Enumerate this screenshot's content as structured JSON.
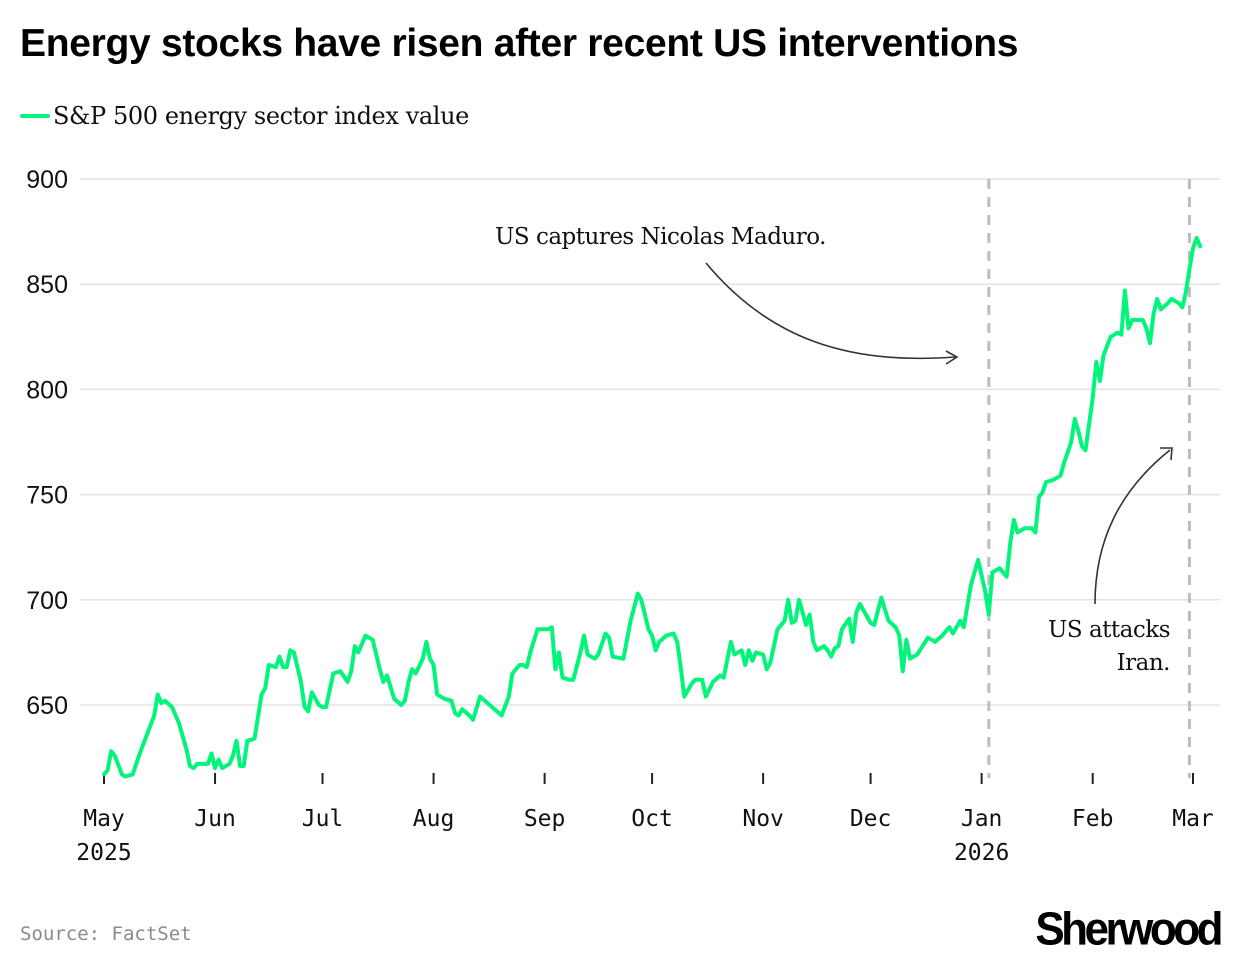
{
  "header": {
    "title": "Energy stocks have risen after recent US interventions"
  },
  "footer": {
    "source": "Source: FactSet",
    "brand": "Sherwood"
  },
  "colors": {
    "line": "#00f57a",
    "grid": "#e3e3e3",
    "event_line": "#bdbdbd",
    "annotation": "#333333"
  },
  "chart_data": {
    "type": "line",
    "title": "Energy stocks have risen after recent US interventions",
    "xlabel": "",
    "ylabel": "",
    "ylim": [
      614,
      900
    ],
    "xlim": [
      "2025-04-30",
      "2026-03-04"
    ],
    "grid": true,
    "legend_position": "top-left",
    "yticks": [
      650,
      700,
      750,
      800,
      850,
      900
    ],
    "xticks": [
      {
        "date": "2025-05-01",
        "label": "May",
        "sublabel": "2025"
      },
      {
        "date": "2025-06-01",
        "label": "Jun",
        "sublabel": ""
      },
      {
        "date": "2025-07-01",
        "label": "Jul",
        "sublabel": ""
      },
      {
        "date": "2025-08-01",
        "label": "Aug",
        "sublabel": ""
      },
      {
        "date": "2025-09-01",
        "label": "Sep",
        "sublabel": ""
      },
      {
        "date": "2025-10-01",
        "label": "Oct",
        "sublabel": ""
      },
      {
        "date": "2025-11-01",
        "label": "Nov",
        "sublabel": ""
      },
      {
        "date": "2025-12-01",
        "label": "Dec",
        "sublabel": ""
      },
      {
        "date": "2026-01-01",
        "label": "Jan",
        "sublabel": "2026"
      },
      {
        "date": "2026-02-01",
        "label": "Feb",
        "sublabel": ""
      },
      {
        "date": "2026-03-01",
        "label": "Mar",
        "sublabel": ""
      }
    ],
    "series": [
      {
        "name": "S&P 500 energy sector index value",
        "points": [
          [
            "2025-05-01",
            617
          ],
          [
            "2025-05-02",
            619
          ],
          [
            "2025-05-03",
            628
          ],
          [
            "2025-05-04",
            626
          ],
          [
            "2025-05-06",
            617
          ],
          [
            "2025-05-07",
            616
          ],
          [
            "2025-05-09",
            617
          ],
          [
            "2025-05-11",
            627
          ],
          [
            "2025-05-13",
            636
          ],
          [
            "2025-05-15",
            645
          ],
          [
            "2025-05-16",
            655
          ],
          [
            "2025-05-17",
            651
          ],
          [
            "2025-05-18",
            652
          ],
          [
            "2025-05-20",
            649
          ],
          [
            "2025-05-22",
            641
          ],
          [
            "2025-05-24",
            629
          ],
          [
            "2025-05-25",
            621
          ],
          [
            "2025-05-26",
            620
          ],
          [
            "2025-05-27",
            622
          ],
          [
            "2025-05-30",
            622
          ],
          [
            "2025-05-31",
            627
          ],
          [
            "2025-06-01",
            620
          ],
          [
            "2025-06-02",
            624
          ],
          [
            "2025-06-03",
            620
          ],
          [
            "2025-06-05",
            622
          ],
          [
            "2025-06-06",
            626
          ],
          [
            "2025-06-07",
            633
          ],
          [
            "2025-06-08",
            621
          ],
          [
            "2025-06-09",
            621
          ],
          [
            "2025-06-10",
            633
          ],
          [
            "2025-06-12",
            634
          ],
          [
            "2025-06-14",
            655
          ],
          [
            "2025-06-15",
            658
          ],
          [
            "2025-06-16",
            669
          ],
          [
            "2025-06-18",
            668
          ],
          [
            "2025-06-19",
            673
          ],
          [
            "2025-06-20",
            668
          ],
          [
            "2025-06-21",
            668
          ],
          [
            "2025-06-22",
            676
          ],
          [
            "2025-06-23",
            675
          ],
          [
            "2025-06-25",
            661
          ],
          [
            "2025-06-26",
            649
          ],
          [
            "2025-06-27",
            647
          ],
          [
            "2025-06-28",
            656
          ],
          [
            "2025-06-29",
            653
          ],
          [
            "2025-06-30",
            650
          ],
          [
            "2025-07-01",
            649
          ],
          [
            "2025-07-02",
            649
          ],
          [
            "2025-07-04",
            665
          ],
          [
            "2025-07-06",
            666
          ],
          [
            "2025-07-08",
            661
          ],
          [
            "2025-07-09",
            666
          ],
          [
            "2025-07-10",
            678
          ],
          [
            "2025-07-11",
            675
          ],
          [
            "2025-07-13",
            683
          ],
          [
            "2025-07-15",
            681
          ],
          [
            "2025-07-17",
            667
          ],
          [
            "2025-07-18",
            661
          ],
          [
            "2025-07-19",
            664
          ],
          [
            "2025-07-21",
            653
          ],
          [
            "2025-07-23",
            650
          ],
          [
            "2025-07-24",
            652
          ],
          [
            "2025-07-25",
            661
          ],
          [
            "2025-07-26",
            667
          ],
          [
            "2025-07-27",
            665
          ],
          [
            "2025-07-29",
            672
          ],
          [
            "2025-07-30",
            680
          ],
          [
            "2025-07-31",
            672
          ],
          [
            "2025-08-01",
            669
          ],
          [
            "2025-08-02",
            655
          ],
          [
            "2025-08-04",
            653
          ],
          [
            "2025-08-06",
            652
          ],
          [
            "2025-08-07",
            646
          ],
          [
            "2025-08-08",
            645
          ],
          [
            "2025-08-09",
            648
          ],
          [
            "2025-08-11",
            645
          ],
          [
            "2025-08-12",
            643
          ],
          [
            "2025-08-14",
            654
          ],
          [
            "2025-08-18",
            648
          ],
          [
            "2025-08-20",
            645
          ],
          [
            "2025-08-22",
            654
          ],
          [
            "2025-08-23",
            665
          ],
          [
            "2025-08-25",
            669
          ],
          [
            "2025-08-26",
            669
          ],
          [
            "2025-08-27",
            668
          ],
          [
            "2025-08-28",
            675
          ],
          [
            "2025-08-30",
            686
          ],
          [
            "2025-09-01",
            686
          ],
          [
            "2025-09-02",
            686
          ],
          [
            "2025-09-03",
            687
          ],
          [
            "2025-09-04",
            667
          ],
          [
            "2025-09-05",
            675
          ],
          [
            "2025-09-06",
            663
          ],
          [
            "2025-09-08",
            662
          ],
          [
            "2025-09-09",
            662
          ],
          [
            "2025-09-11",
            675
          ],
          [
            "2025-09-12",
            683
          ],
          [
            "2025-09-13",
            674
          ],
          [
            "2025-09-15",
            672
          ],
          [
            "2025-09-16",
            674
          ],
          [
            "2025-09-18",
            684
          ],
          [
            "2025-09-19",
            682
          ],
          [
            "2025-09-20",
            673
          ],
          [
            "2025-09-23",
            672
          ],
          [
            "2025-09-25",
            690
          ],
          [
            "2025-09-27",
            703
          ],
          [
            "2025-09-28",
            700
          ],
          [
            "2025-09-30",
            686
          ],
          [
            "2025-10-01",
            683
          ],
          [
            "2025-10-02",
            676
          ],
          [
            "2025-10-03",
            680
          ],
          [
            "2025-10-05",
            683
          ],
          [
            "2025-10-07",
            684
          ],
          [
            "2025-10-08",
            680
          ],
          [
            "2025-10-09",
            668
          ],
          [
            "2025-10-10",
            654
          ],
          [
            "2025-10-12",
            660
          ],
          [
            "2025-10-13",
            662
          ],
          [
            "2025-10-15",
            662
          ],
          [
            "2025-10-16",
            654
          ],
          [
            "2025-10-18",
            661
          ],
          [
            "2025-10-20",
            664
          ],
          [
            "2025-10-21",
            663
          ],
          [
            "2025-10-23",
            680
          ],
          [
            "2025-10-24",
            674
          ],
          [
            "2025-10-26",
            676
          ],
          [
            "2025-10-27",
            669
          ],
          [
            "2025-10-28",
            676
          ],
          [
            "2025-10-29",
            671
          ],
          [
            "2025-10-30",
            675
          ],
          [
            "2025-11-01",
            674
          ],
          [
            "2025-11-02",
            667
          ],
          [
            "2025-11-03",
            670
          ],
          [
            "2025-11-05",
            686
          ],
          [
            "2025-11-07",
            690
          ],
          [
            "2025-11-08",
            700
          ],
          [
            "2025-11-09",
            689
          ],
          [
            "2025-11-10",
            690
          ],
          [
            "2025-11-11",
            700
          ],
          [
            "2025-11-13",
            688
          ],
          [
            "2025-11-14",
            693
          ],
          [
            "2025-11-15",
            680
          ],
          [
            "2025-11-16",
            676
          ],
          [
            "2025-11-18",
            678
          ],
          [
            "2025-11-19",
            676
          ],
          [
            "2025-11-20",
            673
          ],
          [
            "2025-11-21",
            677
          ],
          [
            "2025-11-22",
            678
          ],
          [
            "2025-11-23",
            686
          ],
          [
            "2025-11-25",
            691
          ],
          [
            "2025-11-26",
            680
          ],
          [
            "2025-11-27",
            694
          ],
          [
            "2025-11-28",
            698
          ],
          [
            "2025-12-01",
            689
          ],
          [
            "2025-12-02",
            688
          ],
          [
            "2025-12-04",
            701
          ],
          [
            "2025-12-06",
            690
          ],
          [
            "2025-12-08",
            687
          ],
          [
            "2025-12-09",
            683
          ],
          [
            "2025-12-10",
            666
          ],
          [
            "2025-12-11",
            681
          ],
          [
            "2025-12-12",
            672
          ],
          [
            "2025-12-14",
            674
          ],
          [
            "2025-12-17",
            682
          ],
          [
            "2025-12-18",
            681
          ],
          [
            "2025-12-19",
            680
          ],
          [
            "2025-12-21",
            683
          ],
          [
            "2025-12-23",
            687
          ],
          [
            "2025-12-24",
            684
          ],
          [
            "2025-12-26",
            690
          ],
          [
            "2025-12-27",
            687
          ],
          [
            "2025-12-29",
            707
          ],
          [
            "2025-12-31",
            719
          ],
          [
            "2026-01-02",
            704
          ],
          [
            "2026-01-03",
            693
          ],
          [
            "2026-01-04",
            713
          ],
          [
            "2026-01-06",
            715
          ],
          [
            "2026-01-08",
            711
          ],
          [
            "2026-01-09",
            727
          ],
          [
            "2026-01-10",
            738
          ],
          [
            "2026-01-11",
            732
          ],
          [
            "2026-01-13",
            734
          ],
          [
            "2026-01-15",
            734
          ],
          [
            "2026-01-16",
            732
          ],
          [
            "2026-01-17",
            749
          ],
          [
            "2026-01-18",
            751
          ],
          [
            "2026-01-19",
            756
          ],
          [
            "2026-01-21",
            757
          ],
          [
            "2026-01-23",
            759
          ],
          [
            "2026-01-24",
            765
          ],
          [
            "2026-01-26",
            775
          ],
          [
            "2026-01-27",
            786
          ],
          [
            "2026-01-28",
            780
          ],
          [
            "2026-01-29",
            773
          ],
          [
            "2026-01-30",
            771
          ],
          [
            "2026-02-01",
            796
          ],
          [
            "2026-02-02",
            813
          ],
          [
            "2026-02-03",
            804
          ],
          [
            "2026-02-04",
            816
          ],
          [
            "2026-02-06",
            825
          ],
          [
            "2026-02-08",
            827
          ],
          [
            "2026-02-09",
            826
          ],
          [
            "2026-02-10",
            847
          ],
          [
            "2026-02-11",
            829
          ],
          [
            "2026-02-12",
            833
          ],
          [
            "2026-02-15",
            833
          ],
          [
            "2026-02-16",
            829
          ],
          [
            "2026-02-17",
            822
          ],
          [
            "2026-02-18",
            836
          ],
          [
            "2026-02-19",
            843
          ],
          [
            "2026-02-20",
            838
          ],
          [
            "2026-02-22",
            841
          ],
          [
            "2026-02-23",
            843
          ],
          [
            "2026-02-25",
            841
          ],
          [
            "2026-02-26",
            839
          ],
          [
            "2026-02-27",
            846
          ],
          [
            "2026-02-28",
            857
          ],
          [
            "2026-03-01",
            867
          ],
          [
            "2026-03-02",
            872
          ],
          [
            "2026-03-03",
            868
          ]
        ]
      }
    ],
    "events": [
      {
        "date": "2026-01-03",
        "label": "US captures Nicolas Maduro."
      },
      {
        "date": "2026-02-28",
        "label_lines": [
          "US attacks",
          "Iran."
        ]
      }
    ]
  }
}
